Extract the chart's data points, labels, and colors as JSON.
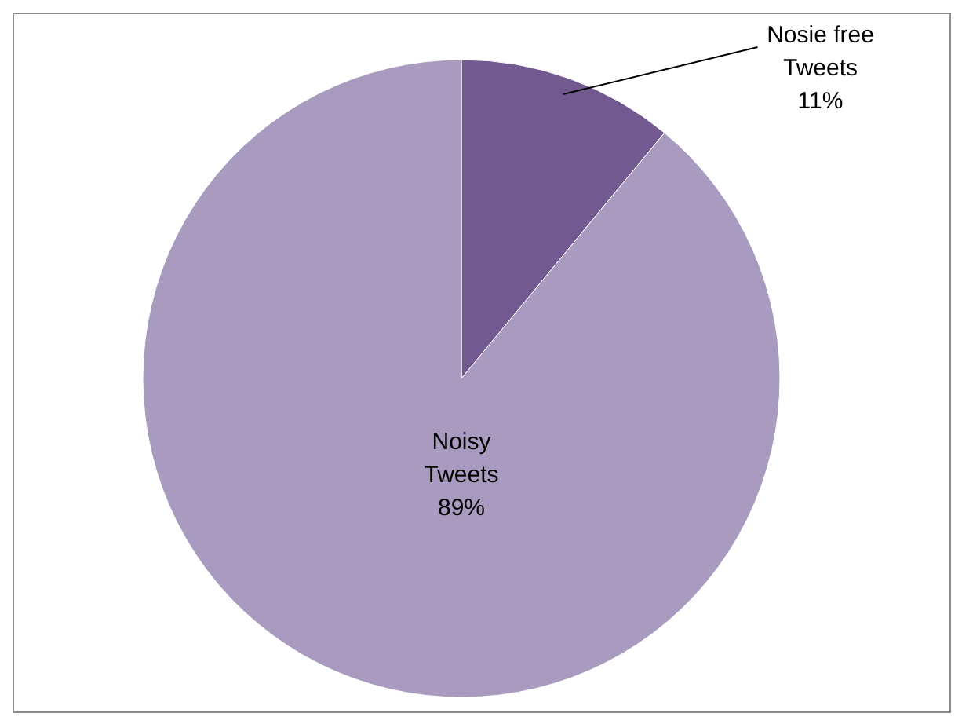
{
  "chart_data": {
    "type": "pie",
    "categories": [
      "Nosie free Tweets",
      "Noisy Tweets"
    ],
    "values": [
      11,
      89
    ],
    "colors": [
      "#725a91",
      "#a99bbf"
    ],
    "value_labels": [
      "11%",
      "89%"
    ]
  }
}
